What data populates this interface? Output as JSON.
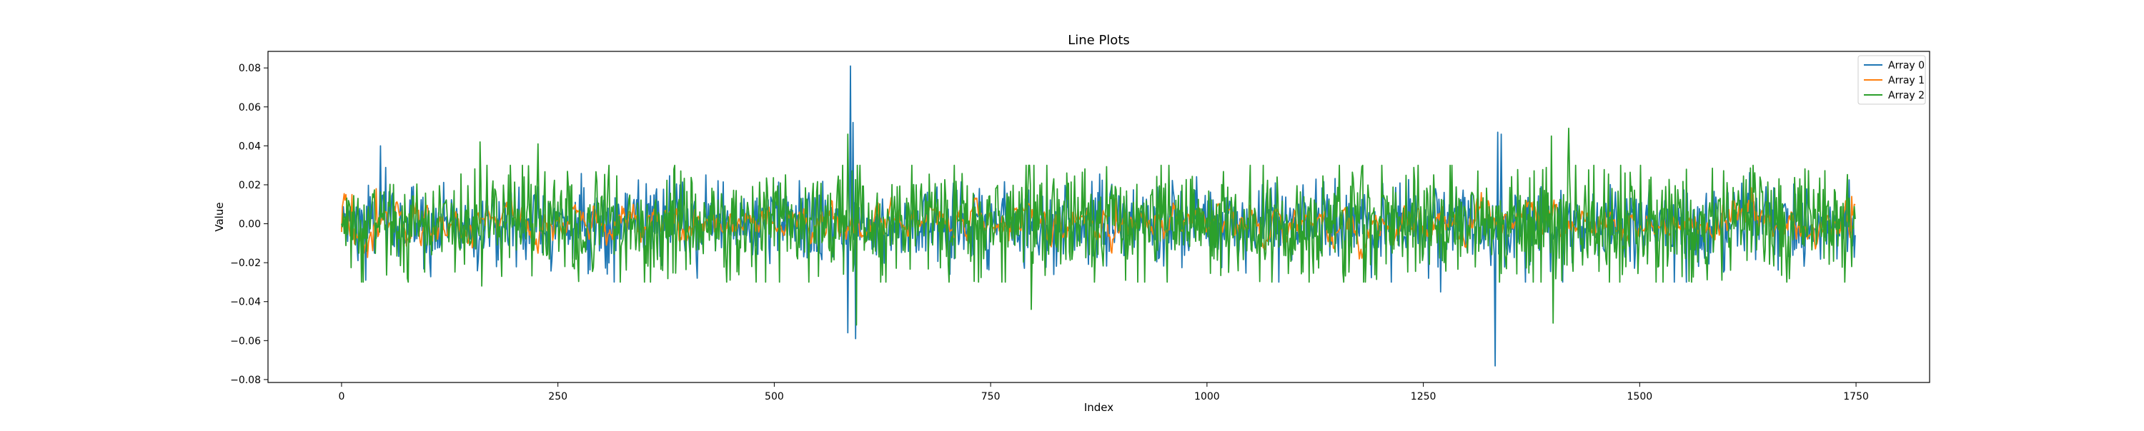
{
  "chart_data": {
    "type": "line",
    "title": "Line Plots",
    "xlabel": "Index",
    "ylabel": "Value",
    "xlim": [
      -85,
      1835
    ],
    "ylim": [
      -0.0815,
      0.0885
    ],
    "x_ticks": [
      0,
      250,
      500,
      750,
      1000,
      1250,
      1500,
      1750
    ],
    "x_tick_labels": [
      "0",
      "250",
      "500",
      "750",
      "1000",
      "1250",
      "1500",
      "1750"
    ],
    "y_ticks": [
      -0.08,
      -0.06,
      -0.04,
      -0.02,
      0.0,
      0.02,
      0.04,
      0.06,
      0.08
    ],
    "y_tick_labels": [
      "−0.08",
      "−0.06",
      "−0.04",
      "−0.02",
      "0.00",
      "0.02",
      "0.04",
      "0.06",
      "0.08"
    ],
    "grid": false,
    "legend_position": "top-right",
    "num_points": 1750,
    "series": [
      {
        "name": "Array 0",
        "color": "#1f77b4",
        "style": "noisy random signal",
        "noise_amplitude": 0.0095,
        "envelope": [
          [
            0,
            0.004
          ],
          [
            20,
            0.011
          ],
          [
            60,
            0.012
          ],
          [
            120,
            0.009
          ],
          [
            500,
            0.01
          ],
          [
            900,
            0.01
          ],
          [
            1200,
            0.011
          ],
          [
            1600,
            0.01
          ],
          [
            1749,
            0.009
          ]
        ],
        "peaks": [
          [
            45,
            0.04
          ],
          [
            28,
            -0.029
          ],
          [
            585,
            -0.056
          ],
          [
            588,
            0.081
          ],
          [
            591,
            0.052
          ],
          [
            594,
            -0.059
          ],
          [
            1333,
            -0.073
          ],
          [
            1336,
            0.047
          ],
          [
            1340,
            0.046
          ],
          [
            1270,
            -0.035
          ]
        ]
      },
      {
        "name": "Array 1",
        "color": "#ff7f0e",
        "style": "smoother lower amplitude signal",
        "noise_amplitude": 0.0045,
        "envelope": [
          [
            0,
            0.008
          ],
          [
            50,
            0.006
          ],
          [
            500,
            0.005
          ],
          [
            1000,
            0.005
          ],
          [
            1500,
            0.005
          ],
          [
            1749,
            0.006
          ]
        ],
        "peaks": [
          [
            5,
            0.015
          ],
          [
            12,
            0.015
          ],
          [
            40,
            0.018
          ],
          [
            895,
            0.013
          ],
          [
            1745,
            0.014
          ]
        ]
      },
      {
        "name": "Array 2",
        "color": "#2ca02c",
        "style": "noisy random signal",
        "noise_amplitude": 0.012,
        "envelope": [
          [
            0,
            0.003
          ],
          [
            15,
            0.012
          ],
          [
            200,
            0.014
          ],
          [
            600,
            0.015
          ],
          [
            1000,
            0.014
          ],
          [
            1400,
            0.016
          ],
          [
            1749,
            0.013
          ]
        ],
        "peaks": [
          [
            160,
            0.042
          ],
          [
            162,
            -0.032
          ],
          [
            227,
            0.041
          ],
          [
            585,
            0.046
          ],
          [
            595,
            -0.052
          ],
          [
            795,
            0.03
          ],
          [
            797,
            -0.044
          ],
          [
            1398,
            0.045
          ],
          [
            1400,
            -0.051
          ],
          [
            1418,
            0.049
          ],
          [
            1670,
            -0.03
          ],
          [
            1745,
            -0.022
          ]
        ]
      }
    ]
  }
}
